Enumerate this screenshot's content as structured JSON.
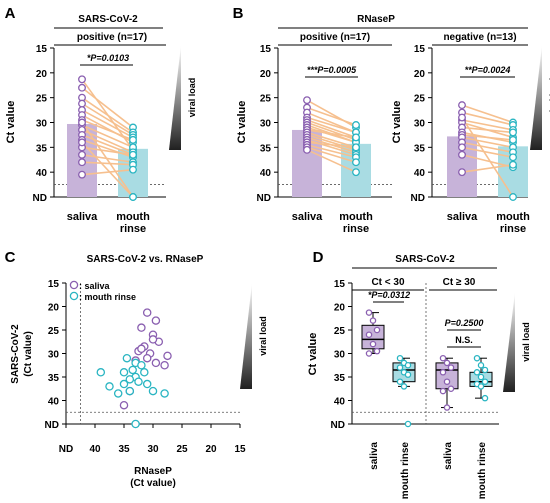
{
  "figure": {
    "colors": {
      "saliva_fill": "#c7b3d9",
      "saliva_edge": "#8a5fb0",
      "rinse_fill": "#a9dce3",
      "rinse_edge": "#2ab5c2",
      "pair_line": "#f6c08f"
    }
  },
  "chart_data": [
    {
      "panel": "A",
      "type": "bar",
      "title": "SARS-CoV-2",
      "subtitle": "positive (n=17)",
      "ylabel": "Ct value",
      "ylim_inverted": [
        15,
        45
      ],
      "yticks": [
        "15",
        "20",
        "25",
        "30",
        "35",
        "40",
        "ND"
      ],
      "categories": [
        "saliva",
        "mouth rinse"
      ],
      "mean": [
        30.3,
        35.3
      ],
      "stat": "*P=0.0103",
      "side_label": "viral load",
      "pairs": [
        [
          21.3,
          35.5
        ],
        [
          23,
          31
        ],
        [
          25,
          32
        ],
        [
          26.2,
          32.5
        ],
        [
          27.5,
          33
        ],
        [
          28.5,
          34
        ],
        [
          29.5,
          33.5
        ],
        [
          30.5,
          35
        ],
        [
          31.5,
          36
        ],
        [
          32.5,
          36.5
        ],
        [
          33.5,
          37
        ],
        [
          35,
          36.5
        ],
        [
          36.5,
          38
        ],
        [
          38,
          38.5
        ],
        [
          40.5,
          39.5
        ],
        [
          30,
          45
        ],
        [
          34,
          45
        ]
      ]
    },
    {
      "panel": "B-left",
      "type": "bar",
      "title": "RNaseP",
      "subtitle": "positive (n=17)",
      "ylabel": "Ct value",
      "ylim_inverted": [
        15,
        45
      ],
      "yticks": [
        "15",
        "20",
        "25",
        "30",
        "35",
        "40",
        "ND"
      ],
      "categories": [
        "saliva",
        "mouth rinse"
      ],
      "mean": [
        31.5,
        34.3
      ],
      "stat": "***P=0.0005",
      "side_label": "",
      "pairs": [
        [
          25.5,
          31
        ],
        [
          27,
          30.5
        ],
        [
          28,
          32
        ],
        [
          29,
          32
        ],
        [
          29.5,
          33
        ],
        [
          30,
          33.5
        ],
        [
          30.5,
          34
        ],
        [
          31,
          34
        ],
        [
          31.5,
          33
        ],
        [
          32,
          35
        ],
        [
          32.5,
          35.5
        ],
        [
          33,
          36
        ],
        [
          33.5,
          36.5
        ],
        [
          34,
          35
        ],
        [
          34.5,
          37
        ],
        [
          35,
          38
        ],
        [
          35.5,
          40
        ]
      ]
    },
    {
      "panel": "B-right",
      "type": "bar",
      "subtitle": "negative (n=13)",
      "ylabel": "Ct value",
      "ylim_inverted": [
        15,
        45
      ],
      "yticks": [
        "15",
        "20",
        "25",
        "30",
        "35",
        "40",
        "ND"
      ],
      "categories": [
        "saliva",
        "mouth rinse"
      ],
      "mean": [
        32.8,
        34.8
      ],
      "stat": "**P=0.0024",
      "side_label": "viral load",
      "pairs": [
        [
          26.5,
          30
        ],
        [
          28,
          30.5
        ],
        [
          29.5,
          31.5
        ],
        [
          30,
          33
        ],
        [
          31,
          32
        ],
        [
          32,
          34
        ],
        [
          32.5,
          33.5
        ],
        [
          33,
          35
        ],
        [
          34,
          36
        ],
        [
          35,
          37
        ],
        [
          36.5,
          39
        ],
        [
          40,
          38.5
        ],
        [
          29,
          45
        ]
      ]
    },
    {
      "panel": "C",
      "type": "scatter",
      "title": "SARS-CoV-2 vs. RNaseP",
      "xlabel": "RNaseP\n(Ct value)",
      "ylabel": "SARS-CoV-2\n(Ct value)",
      "xlim_inverted": [
        15,
        45
      ],
      "ylim_inverted": [
        15,
        45
      ],
      "xticks": [
        "ND",
        "40",
        "35",
        "30",
        "25",
        "20",
        "15"
      ],
      "yticks": [
        "15",
        "20",
        "25",
        "30",
        "35",
        "40",
        "ND"
      ],
      "legend": [
        "saliva",
        "mouth rinse"
      ],
      "side_label": "viral load",
      "series": [
        {
          "name": "saliva",
          "x": [
            31,
            29.5,
            32,
            30,
            29,
            31.5,
            32.5,
            30.5,
            28,
            27.5,
            31,
            33,
            29.5,
            30,
            32,
            34,
            35
          ],
          "y": [
            21.3,
            23,
            24.5,
            26,
            27.5,
            28.5,
            29.5,
            30,
            32.5,
            30.5,
            31,
            31.5,
            32,
            27,
            29,
            38,
            41
          ]
        },
        {
          "name": "mouth rinse",
          "x": [
            34.5,
            33,
            32,
            33.5,
            35,
            33,
            34,
            31.5,
            32.5,
            35,
            31,
            34,
            36,
            37.5,
            39,
            30,
            28,
            33
          ],
          "y": [
            31,
            32,
            32.5,
            33.5,
            34,
            35,
            35.5,
            34,
            36,
            36.5,
            36.5,
            38,
            38.5,
            37,
            34,
            38,
            38.5,
            45
          ]
        }
      ]
    },
    {
      "panel": "D",
      "type": "box",
      "title": "SARS-CoV-2",
      "ylabel": "Ct value",
      "ylim_inverted": [
        15,
        45
      ],
      "yticks": [
        "15",
        "20",
        "25",
        "30",
        "35",
        "40",
        "ND"
      ],
      "groups": [
        "Ct < 30",
        "Ct ≥ 30"
      ],
      "categories": [
        "saliva",
        "mouth rinse",
        "saliva",
        "mouth rinse"
      ],
      "boxes": [
        {
          "min": 21.3,
          "q1": 24,
          "median": 27,
          "q3": 29,
          "max": 30
        },
        {
          "min": 31,
          "q1": 32,
          "median": 33.5,
          "q3": 36,
          "max": 37
        },
        {
          "min": 31,
          "q1": 32,
          "median": 33.5,
          "q3": 37.5,
          "max": 41.5
        },
        {
          "min": 31,
          "q1": 34,
          "median": 36,
          "q3": 37,
          "max": 39.5
        }
      ],
      "points": [
        [
          21.3,
          23,
          25,
          26,
          28,
          29.5,
          30
        ],
        [
          31,
          32,
          32.5,
          33,
          34,
          34.5,
          36,
          37,
          45
        ],
        [
          31,
          32,
          33,
          34,
          36,
          37.5,
          38,
          41.5
        ],
        [
          31,
          32.5,
          33.5,
          34,
          35,
          36,
          36.5,
          37,
          39.5
        ]
      ],
      "stats": [
        "*P=0.0312",
        "P=0.2500",
        "N.S."
      ],
      "side_label": "viral load"
    }
  ]
}
